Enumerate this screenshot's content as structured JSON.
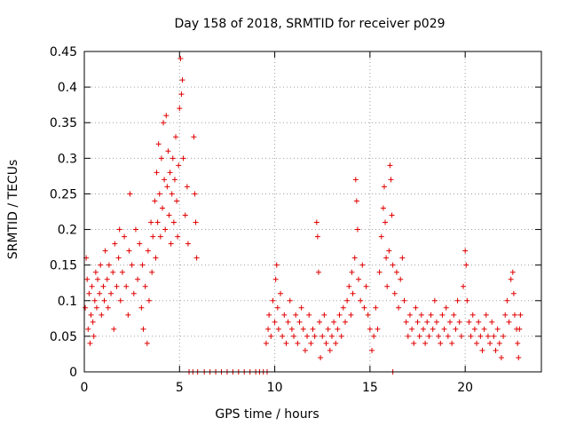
{
  "chart_data": {
    "type": "scatter",
    "title": "Day 158 of 2018, SRMTID for receiver p029",
    "xlabel": "GPS time / hours",
    "ylabel": "SRMTID / TECUs",
    "xlim": [
      0,
      24
    ],
    "ylim": [
      0,
      0.45
    ],
    "x_ticks": [
      0,
      5,
      10,
      15,
      20
    ],
    "x_tick_labels": [
      "0",
      "5",
      "10",
      "15",
      "20"
    ],
    "y_ticks": [
      0,
      0.05,
      0.1,
      0.15,
      0.2,
      0.25,
      0.3,
      0.35,
      0.4,
      0.45
    ],
    "y_tick_labels": [
      "0",
      "0.05",
      "0.1",
      "0.15",
      "0.2",
      "0.25",
      "0.3",
      "0.35",
      "0.4",
      "0.45"
    ],
    "grid": true,
    "marker": "+",
    "color": "#e00000",
    "series": [
      {
        "name": "p029",
        "points": [
          [
            0.05,
            0.09
          ],
          [
            0.1,
            0.16
          ],
          [
            0.15,
            0.13
          ],
          [
            0.2,
            0.06
          ],
          [
            0.25,
            0.11
          ],
          [
            0.3,
            0.04
          ],
          [
            0.35,
            0.08
          ],
          [
            0.4,
            0.12
          ],
          [
            0.45,
            0.07
          ],
          [
            0.5,
            0.05
          ],
          [
            0.55,
            0.1
          ],
          [
            0.6,
            0.14
          ],
          [
            0.65,
            0.09
          ],
          [
            0.7,
            0.13
          ],
          [
            0.8,
            0.11
          ],
          [
            0.85,
            0.15
          ],
          [
            0.9,
            0.08
          ],
          [
            1.0,
            0.12
          ],
          [
            1.05,
            0.1
          ],
          [
            1.1,
            0.17
          ],
          [
            1.2,
            0.13
          ],
          [
            1.25,
            0.09
          ],
          [
            1.3,
            0.15
          ],
          [
            1.4,
            0.11
          ],
          [
            1.5,
            0.14
          ],
          [
            1.55,
            0.06
          ],
          [
            1.6,
            0.18
          ],
          [
            1.7,
            0.12
          ],
          [
            1.8,
            0.16
          ],
          [
            1.85,
            0.2
          ],
          [
            1.9,
            0.1
          ],
          [
            2.0,
            0.14
          ],
          [
            2.1,
            0.19
          ],
          [
            2.2,
            0.12
          ],
          [
            2.3,
            0.08
          ],
          [
            2.35,
            0.17
          ],
          [
            2.4,
            0.25
          ],
          [
            2.5,
            0.15
          ],
          [
            2.6,
            0.11
          ],
          [
            2.7,
            0.2
          ],
          [
            2.8,
            0.13
          ],
          [
            2.9,
            0.18
          ],
          [
            3.0,
            0.09
          ],
          [
            3.05,
            0.15
          ],
          [
            3.1,
            0.06
          ],
          [
            3.2,
            0.12
          ],
          [
            3.3,
            0.04
          ],
          [
            3.35,
            0.17
          ],
          [
            3.4,
            0.1
          ],
          [
            3.5,
            0.21
          ],
          [
            3.55,
            0.14
          ],
          [
            3.6,
            0.19
          ],
          [
            3.7,
            0.24
          ],
          [
            3.75,
            0.16
          ],
          [
            3.8,
            0.28
          ],
          [
            3.85,
            0.21
          ],
          [
            3.9,
            0.32
          ],
          [
            3.95,
            0.25
          ],
          [
            4.0,
            0.19
          ],
          [
            4.05,
            0.3
          ],
          [
            4.1,
            0.23
          ],
          [
            4.15,
            0.35
          ],
          [
            4.2,
            0.27
          ],
          [
            4.25,
            0.2
          ],
          [
            4.3,
            0.36
          ],
          [
            4.35,
            0.26
          ],
          [
            4.4,
            0.31
          ],
          [
            4.45,
            0.22
          ],
          [
            4.5,
            0.28
          ],
          [
            4.55,
            0.18
          ],
          [
            4.6,
            0.25
          ],
          [
            4.65,
            0.3
          ],
          [
            4.7,
            0.21
          ],
          [
            4.75,
            0.27
          ],
          [
            4.8,
            0.33
          ],
          [
            4.85,
            0.24
          ],
          [
            4.9,
            0.19
          ],
          [
            4.95,
            0.29
          ],
          [
            5.0,
            0.37
          ],
          [
            5.05,
            0.44
          ],
          [
            5.1,
            0.39
          ],
          [
            5.15,
            0.41
          ],
          [
            5.2,
            0.3
          ],
          [
            5.3,
            0.22
          ],
          [
            5.4,
            0.26
          ],
          [
            5.45,
            0.18
          ],
          [
            5.75,
            0.33
          ],
          [
            5.8,
            0.25
          ],
          [
            5.85,
            0.21
          ],
          [
            5.9,
            0.16
          ],
          [
            5.5,
            0.0
          ],
          [
            5.7,
            0.0
          ],
          [
            5.95,
            0.0
          ],
          [
            6.3,
            0.0
          ],
          [
            6.6,
            0.0
          ],
          [
            6.9,
            0.0
          ],
          [
            7.2,
            0.0
          ],
          [
            7.5,
            0.0
          ],
          [
            7.8,
            0.0
          ],
          [
            8.1,
            0.0
          ],
          [
            8.4,
            0.0
          ],
          [
            8.7,
            0.0
          ],
          [
            9.0,
            0.0
          ],
          [
            9.2,
            0.0
          ],
          [
            9.4,
            0.0
          ],
          [
            9.6,
            0.0
          ],
          [
            16.2,
            0.0
          ],
          [
            9.55,
            0.04
          ],
          [
            9.65,
            0.06
          ],
          [
            9.7,
            0.08
          ],
          [
            9.8,
            0.05
          ],
          [
            9.9,
            0.1
          ],
          [
            10.0,
            0.07
          ],
          [
            10.05,
            0.13
          ],
          [
            10.1,
            0.15
          ],
          [
            10.15,
            0.09
          ],
          [
            10.2,
            0.06
          ],
          [
            10.3,
            0.11
          ],
          [
            10.4,
            0.05
          ],
          [
            10.5,
            0.08
          ],
          [
            10.6,
            0.04
          ],
          [
            10.7,
            0.07
          ],
          [
            10.8,
            0.1
          ],
          [
            10.9,
            0.06
          ],
          [
            11.0,
            0.05
          ],
          [
            11.1,
            0.08
          ],
          [
            11.2,
            0.04
          ],
          [
            11.3,
            0.07
          ],
          [
            11.4,
            0.09
          ],
          [
            11.5,
            0.06
          ],
          [
            11.6,
            0.03
          ],
          [
            11.7,
            0.05
          ],
          [
            11.8,
            0.08
          ],
          [
            11.9,
            0.04
          ],
          [
            12.0,
            0.06
          ],
          [
            12.1,
            0.05
          ],
          [
            12.2,
            0.21
          ],
          [
            12.25,
            0.19
          ],
          [
            12.3,
            0.14
          ],
          [
            12.35,
            0.07
          ],
          [
            12.4,
            0.02
          ],
          [
            12.5,
            0.05
          ],
          [
            12.6,
            0.08
          ],
          [
            12.7,
            0.04
          ],
          [
            12.8,
            0.06
          ],
          [
            12.9,
            0.03
          ],
          [
            13.0,
            0.05
          ],
          [
            13.1,
            0.07
          ],
          [
            13.2,
            0.04
          ],
          [
            13.3,
            0.06
          ],
          [
            13.4,
            0.08
          ],
          [
            13.5,
            0.05
          ],
          [
            13.6,
            0.09
          ],
          [
            13.7,
            0.07
          ],
          [
            13.8,
            0.1
          ],
          [
            13.9,
            0.12
          ],
          [
            14.0,
            0.08
          ],
          [
            14.05,
            0.14
          ],
          [
            14.1,
            0.11
          ],
          [
            14.2,
            0.16
          ],
          [
            14.25,
            0.27
          ],
          [
            14.3,
            0.24
          ],
          [
            14.35,
            0.2
          ],
          [
            14.4,
            0.13
          ],
          [
            14.5,
            0.1
          ],
          [
            14.6,
            0.15
          ],
          [
            14.7,
            0.09
          ],
          [
            14.8,
            0.12
          ],
          [
            14.9,
            0.08
          ],
          [
            15.0,
            0.06
          ],
          [
            15.1,
            0.03
          ],
          [
            15.2,
            0.05
          ],
          [
            15.3,
            0.09
          ],
          [
            15.4,
            0.06
          ],
          [
            15.5,
            0.14
          ],
          [
            15.6,
            0.19
          ],
          [
            15.7,
            0.23
          ],
          [
            15.75,
            0.26
          ],
          [
            15.8,
            0.21
          ],
          [
            15.85,
            0.16
          ],
          [
            15.9,
            0.12
          ],
          [
            16.0,
            0.17
          ],
          [
            16.05,
            0.29
          ],
          [
            16.1,
            0.27
          ],
          [
            16.15,
            0.22
          ],
          [
            16.2,
            0.15
          ],
          [
            16.3,
            0.11
          ],
          [
            16.4,
            0.14
          ],
          [
            16.5,
            0.09
          ],
          [
            16.6,
            0.13
          ],
          [
            16.7,
            0.16
          ],
          [
            16.8,
            0.1
          ],
          [
            16.9,
            0.07
          ],
          [
            17.0,
            0.05
          ],
          [
            17.1,
            0.08
          ],
          [
            17.2,
            0.06
          ],
          [
            17.3,
            0.04
          ],
          [
            17.4,
            0.09
          ],
          [
            17.5,
            0.07
          ],
          [
            17.6,
            0.05
          ],
          [
            17.7,
            0.08
          ],
          [
            17.8,
            0.06
          ],
          [
            17.9,
            0.04
          ],
          [
            18.0,
            0.07
          ],
          [
            18.1,
            0.05
          ],
          [
            18.2,
            0.08
          ],
          [
            18.3,
            0.06
          ],
          [
            18.4,
            0.1
          ],
          [
            18.5,
            0.07
          ],
          [
            18.6,
            0.05
          ],
          [
            18.7,
            0.04
          ],
          [
            18.8,
            0.08
          ],
          [
            18.9,
            0.06
          ],
          [
            19.0,
            0.09
          ],
          [
            19.1,
            0.05
          ],
          [
            19.2,
            0.07
          ],
          [
            19.3,
            0.04
          ],
          [
            19.4,
            0.08
          ],
          [
            19.5,
            0.06
          ],
          [
            19.6,
            0.1
          ],
          [
            19.7,
            0.07
          ],
          [
            19.8,
            0.05
          ],
          [
            19.9,
            0.12
          ],
          [
            20.0,
            0.17
          ],
          [
            20.05,
            0.15
          ],
          [
            20.1,
            0.1
          ],
          [
            20.2,
            0.07
          ],
          [
            20.3,
            0.05
          ],
          [
            20.4,
            0.08
          ],
          [
            20.5,
            0.06
          ],
          [
            20.6,
            0.04
          ],
          [
            20.7,
            0.07
          ],
          [
            20.8,
            0.05
          ],
          [
            20.9,
            0.03
          ],
          [
            21.0,
            0.06
          ],
          [
            21.1,
            0.08
          ],
          [
            21.2,
            0.05
          ],
          [
            21.3,
            0.04
          ],
          [
            21.4,
            0.07
          ],
          [
            21.5,
            0.05
          ],
          [
            21.6,
            0.03
          ],
          [
            21.7,
            0.06
          ],
          [
            21.8,
            0.04
          ],
          [
            21.9,
            0.02
          ],
          [
            22.0,
            0.05
          ],
          [
            22.1,
            0.08
          ],
          [
            22.2,
            0.1
          ],
          [
            22.3,
            0.07
          ],
          [
            22.4,
            0.13
          ],
          [
            22.5,
            0.14
          ],
          [
            22.55,
            0.11
          ],
          [
            22.6,
            0.08
          ],
          [
            22.7,
            0.06
          ],
          [
            22.75,
            0.04
          ],
          [
            22.8,
            0.02
          ],
          [
            22.85,
            0.06
          ],
          [
            22.9,
            0.08
          ]
        ]
      }
    ]
  }
}
